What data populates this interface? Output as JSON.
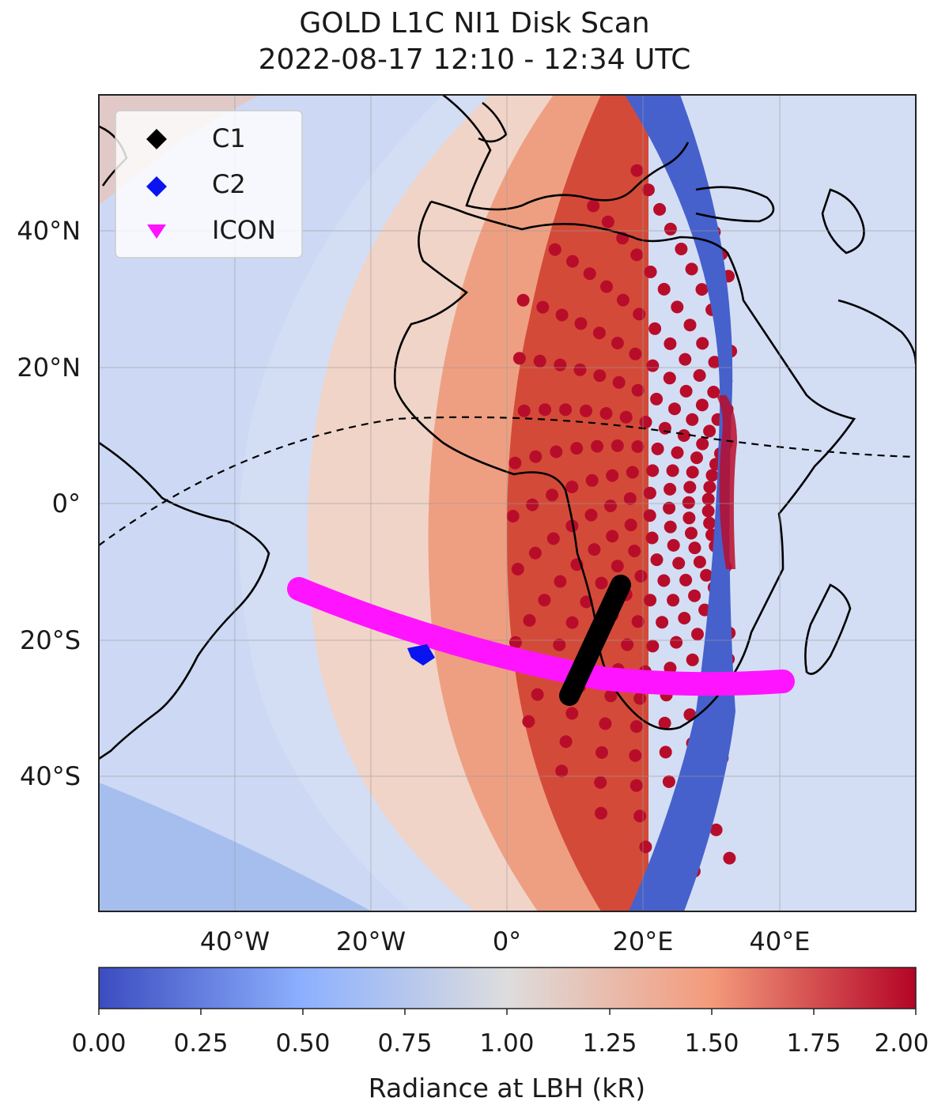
{
  "title": {
    "line1": "GOLD L1C NI1 Disk Scan",
    "line2": "2022-08-17 12:10 - 12:34 UTC"
  },
  "map": {
    "lat_ticks": [
      "40°N",
      "20°N",
      "0°",
      "20°S",
      "40°S"
    ],
    "lon_ticks": [
      "40°W",
      "20°W",
      "0°",
      "20°E",
      "40°E"
    ],
    "legend": [
      {
        "label": "C1",
        "color": "#000000",
        "marker": "diamond"
      },
      {
        "label": "C2",
        "color": "#0a14f0",
        "marker": "diamond"
      },
      {
        "label": "ICON",
        "color": "#ff14ff",
        "marker": "triangle-down"
      }
    ]
  },
  "colorbar": {
    "ticks": [
      "0.00",
      "0.25",
      "0.50",
      "0.75",
      "1.00",
      "1.25",
      "1.50",
      "1.75",
      "2.00"
    ],
    "label": "Radiance at LBH (kR)",
    "colormap": [
      "#3b4cc0",
      "#8db0fe",
      "#dddddd",
      "#f49a7b",
      "#b40426"
    ]
  }
}
